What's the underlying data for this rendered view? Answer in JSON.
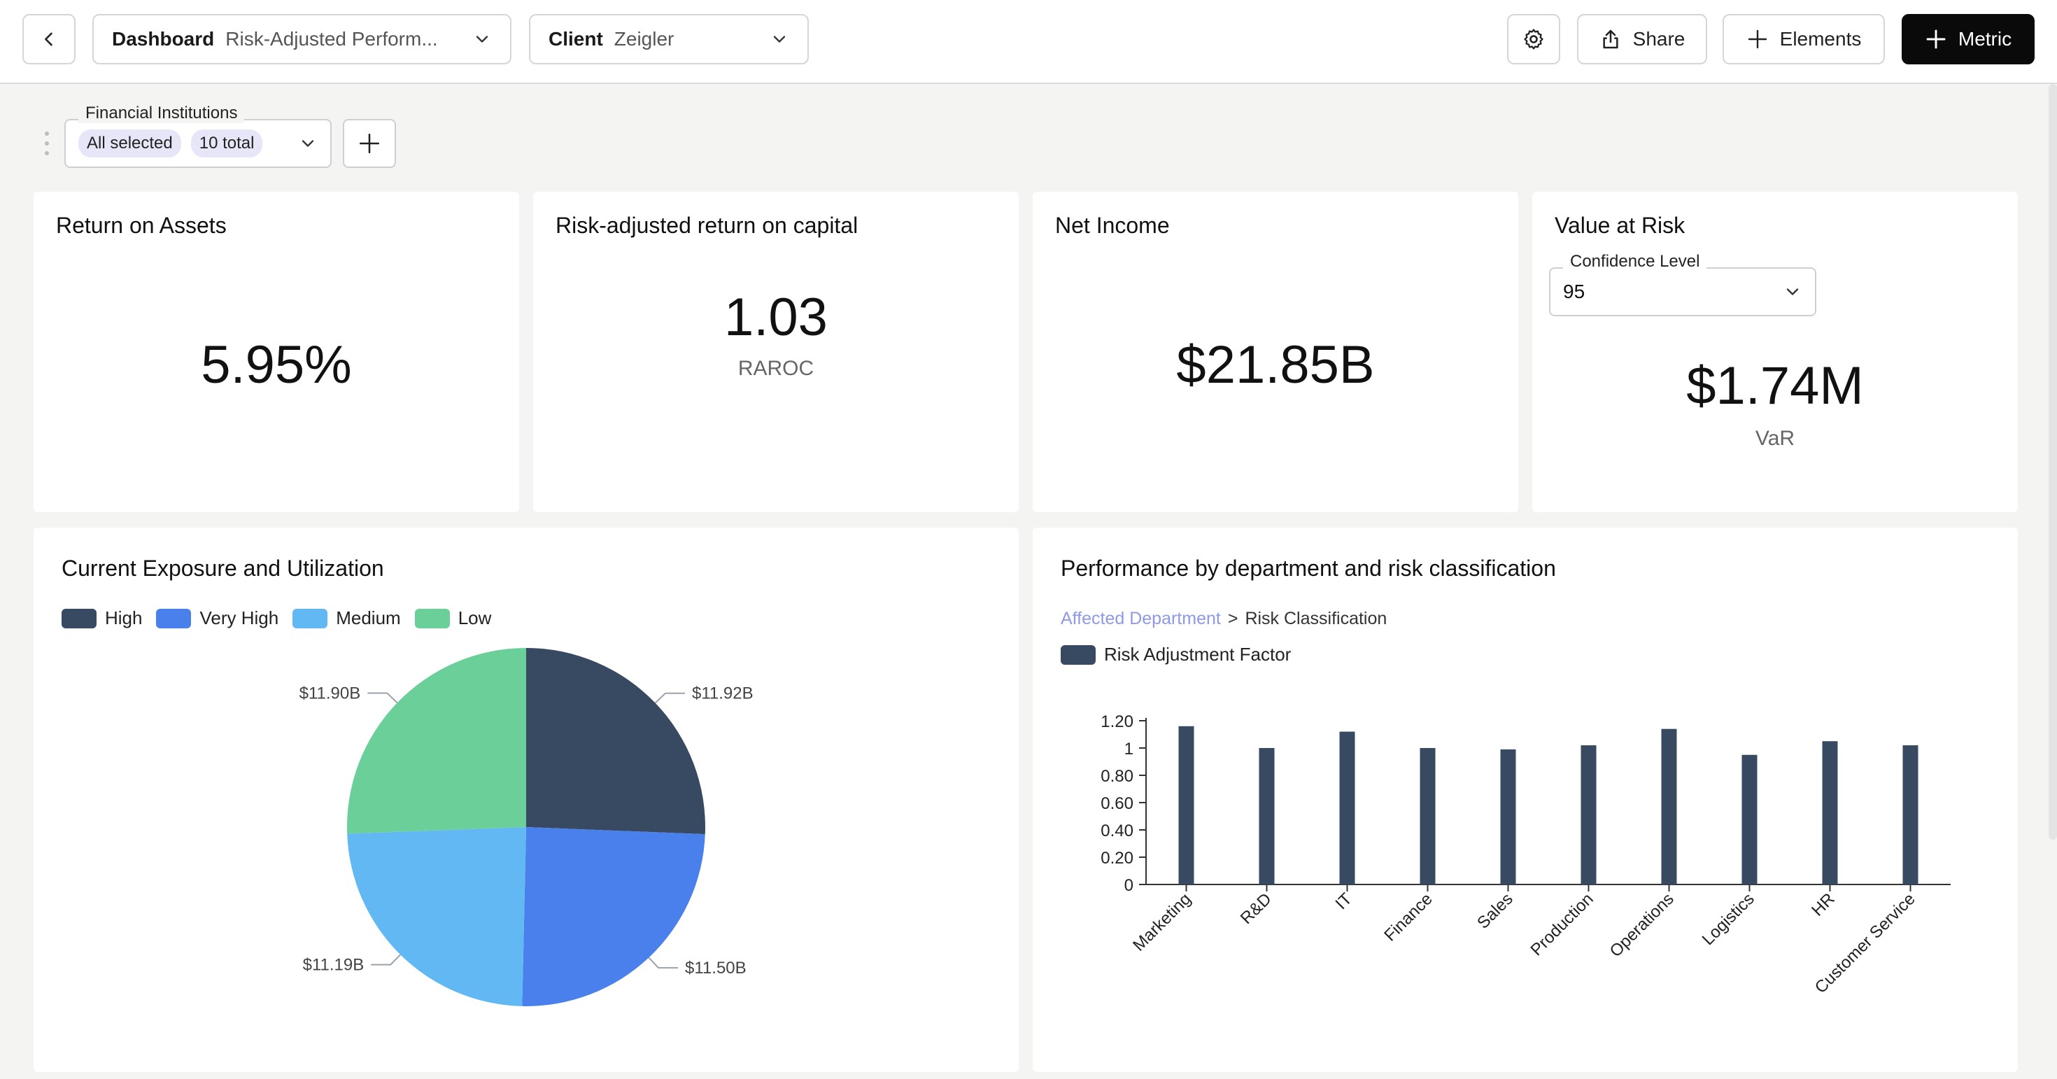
{
  "header": {
    "dashboard_label": "Dashboard",
    "dashboard_value": "Risk-Adjusted Perform...",
    "client_label": "Client",
    "client_value": "Zeigler",
    "share_label": "Share",
    "elements_label": "Elements",
    "metric_label": "Metric"
  },
  "filter": {
    "legend": "Financial Institutions",
    "chip_selected": "All selected",
    "chip_total": "10 total"
  },
  "kpis": {
    "roa": {
      "title": "Return on Assets",
      "value": "5.95%"
    },
    "raroc": {
      "title": "Risk-adjusted return on capital",
      "value": "1.03",
      "sub": "RAROC"
    },
    "net_income": {
      "title": "Net Income",
      "value": "$21.85B"
    },
    "var": {
      "title": "Value at Risk",
      "confidence_legend": "Confidence Level",
      "confidence_value": "95",
      "value": "$1.74M",
      "sub": "VaR"
    }
  },
  "colors": {
    "high": "#374a61",
    "very_high": "#4a80eb",
    "medium": "#62b8f2",
    "low": "#6bcf9a",
    "bar": "#374a61"
  },
  "chart_data": [
    {
      "type": "pie",
      "title": "Current Exposure and Utilization",
      "legend_placement": "top-left",
      "slices": [
        {
          "name": "High",
          "value": 11.92,
          "label": "$11.92B"
        },
        {
          "name": "Very High",
          "value": 11.5,
          "label": "$11.50B"
        },
        {
          "name": "Medium",
          "value": 11.19,
          "label": "$11.19B"
        },
        {
          "name": "Low",
          "value": 11.9,
          "label": "$11.90B"
        }
      ]
    },
    {
      "type": "bar",
      "title": "Performance by department and risk classification",
      "breadcrumb": [
        "Affected Department",
        ">",
        "Risk Classification"
      ],
      "legend_placement": "top-left",
      "categories": [
        "Marketing",
        "R&D",
        "IT",
        "Finance",
        "Sales",
        "Production",
        "Operations",
        "Logistics",
        "HR",
        "Customer Service"
      ],
      "series": [
        {
          "name": "Risk Adjustment Factor",
          "values": [
            1.16,
            1.0,
            1.12,
            1.0,
            0.99,
            1.02,
            1.14,
            0.95,
            1.05,
            1.02
          ]
        }
      ],
      "ylim": [
        0,
        1.2
      ],
      "yticks": [
        {
          "v": 1.2,
          "label": "1.20"
        },
        {
          "v": 1.0,
          "label": "1"
        },
        {
          "v": 0.8,
          "label": "0.80"
        },
        {
          "v": 0.6,
          "label": "0.60"
        },
        {
          "v": 0.4,
          "label": "0.40"
        },
        {
          "v": 0.2,
          "label": "0.20"
        },
        {
          "v": 0,
          "label": "0"
        }
      ],
      "grid": false
    }
  ]
}
